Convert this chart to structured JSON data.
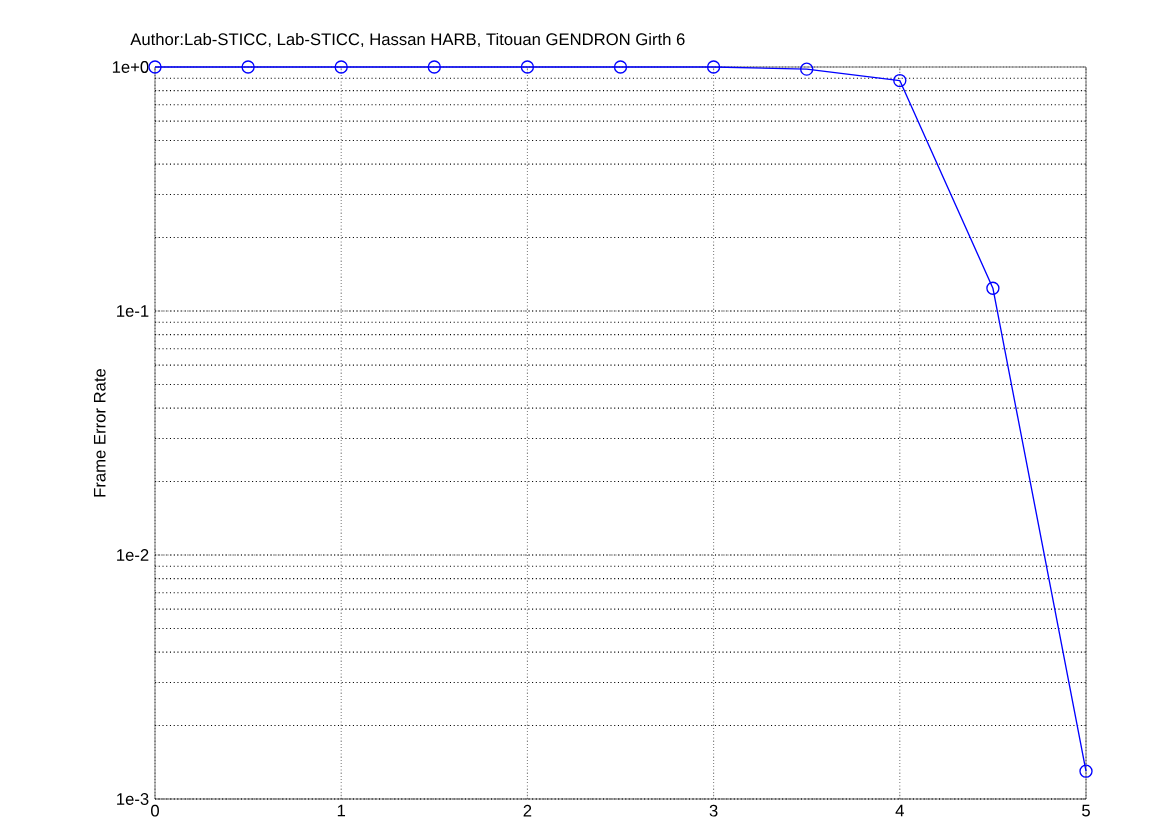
{
  "chart_data": {
    "type": "line",
    "title": "Author:Lab-STICC, Lab-STICC, Hassan HARB, Titouan GENDRON Girth 6",
    "ylabel": "Frame Error Rate",
    "x": [
      0,
      0.5,
      1,
      1.5,
      2,
      2.5,
      3,
      3.5,
      4,
      4.5,
      5
    ],
    "series": [
      {
        "color": "#0000ff",
        "values": [
          1,
          1,
          1,
          1,
          1,
          1,
          1,
          0.98,
          0.88,
          0.124,
          0.0013
        ]
      }
    ],
    "xlim": [
      0,
      5
    ],
    "xticks": [
      0,
      1,
      2,
      3,
      4,
      5
    ],
    "ylim": [
      0.001,
      1
    ],
    "yticks": [
      {
        "value": 0.001,
        "label": "1e-3"
      },
      {
        "value": 0.01,
        "label": "1e-2"
      },
      {
        "value": 0.1,
        "label": "1e-1"
      },
      {
        "value": 1,
        "label": "1e+0"
      }
    ],
    "log": "y",
    "grid": true,
    "marker": "circle",
    "line_style": "solid"
  }
}
